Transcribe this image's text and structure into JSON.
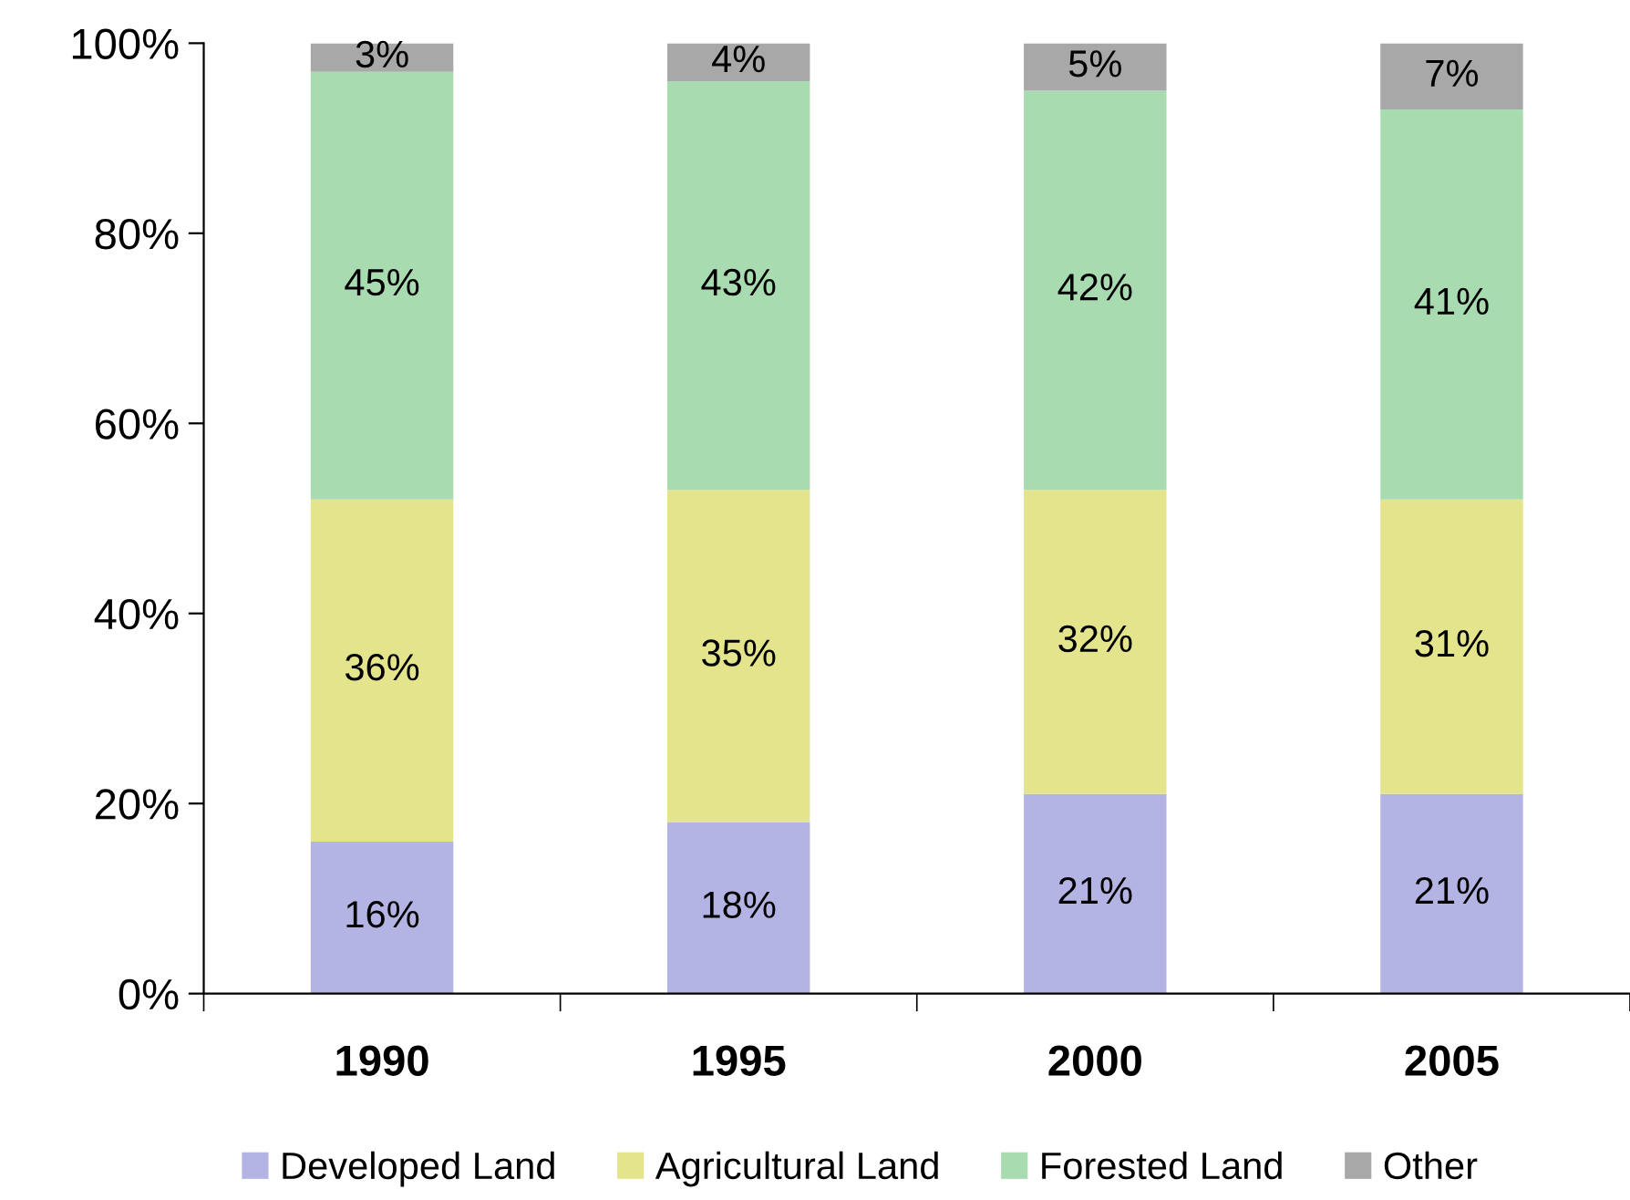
{
  "chart_data": {
    "type": "bar",
    "stacked": true,
    "categories": [
      "1990",
      "1995",
      "2000",
      "2005"
    ],
    "series": [
      {
        "name": "Developed Land",
        "color": "#b4b4e4",
        "values": [
          16,
          18,
          21,
          21
        ],
        "value_labels": [
          "16%",
          "18%",
          "21%",
          "21%"
        ]
      },
      {
        "name": "Agricultural Land",
        "color": "#e4e48c",
        "values": [
          36,
          35,
          32,
          31
        ],
        "value_labels": [
          "36%",
          "35%",
          "32%",
          "31%"
        ]
      },
      {
        "name": "Forested Land",
        "color": "#a8dcb0",
        "values": [
          45,
          43,
          42,
          41
        ],
        "value_labels": [
          "45%",
          "43%",
          "42%",
          "41%"
        ]
      },
      {
        "name": "Other",
        "color": "#a8a8a8",
        "values": [
          3,
          4,
          5,
          7
        ],
        "value_labels": [
          "3%",
          "4%",
          "5%",
          "7%"
        ]
      }
    ],
    "ylim": [
      0,
      100
    ],
    "yticks": [
      {
        "value": 0,
        "label": "0%"
      },
      {
        "value": 20,
        "label": "20%"
      },
      {
        "value": 40,
        "label": "40%"
      },
      {
        "value": 60,
        "label": "60%"
      },
      {
        "value": 80,
        "label": "80%"
      },
      {
        "value": 100,
        "label": "100%"
      }
    ],
    "grid": false,
    "legend": "bottom"
  }
}
